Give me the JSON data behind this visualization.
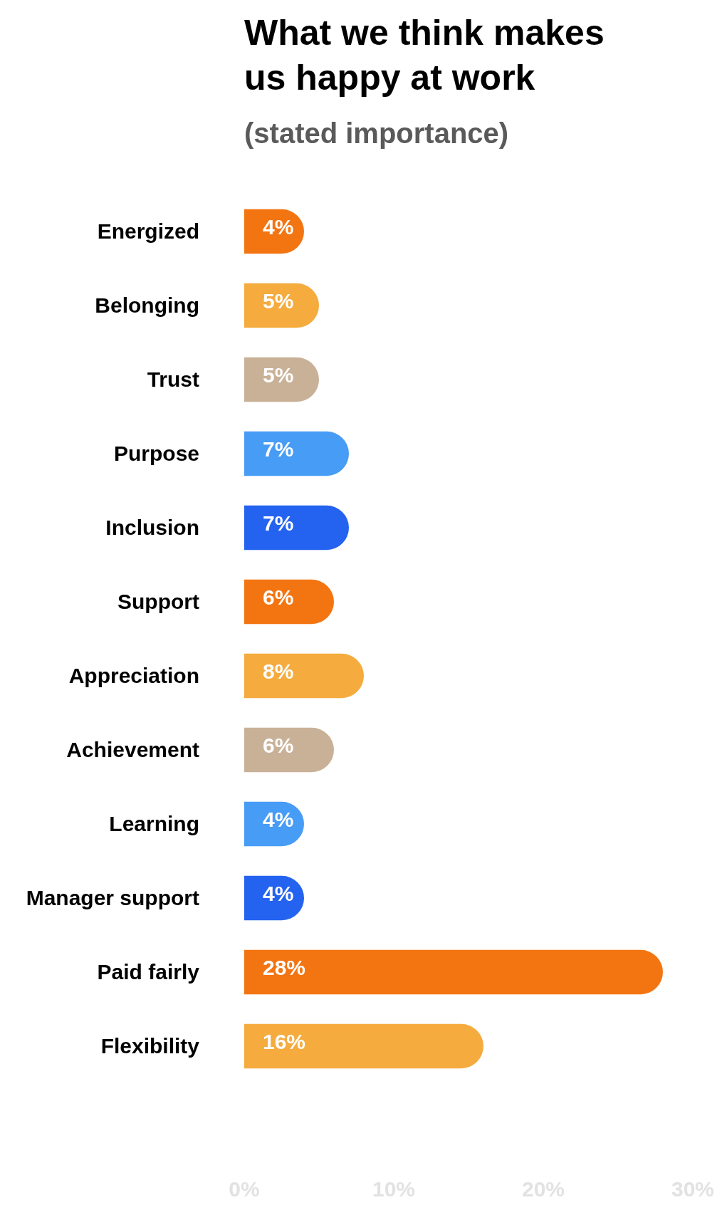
{
  "chart_data": {
    "type": "bar",
    "orientation": "horizontal",
    "title": "What we think makes us happy at work",
    "subtitle": "(stated importance)",
    "categories": [
      "Energized",
      "Belonging",
      "Trust",
      "Purpose",
      "Inclusion",
      "Support",
      "Appreciation",
      "Achievement",
      "Learning",
      "Manager support",
      "Paid fairly",
      "Flexibility"
    ],
    "values": [
      4,
      5,
      5,
      7,
      7,
      6,
      8,
      6,
      4,
      4,
      28,
      16
    ],
    "colors": [
      "#f37512",
      "#f5ab3e",
      "#c9b198",
      "#479cf5",
      "#2463f0",
      "#f37512",
      "#f5ab3e",
      "#c9b198",
      "#479cf5",
      "#2463f0",
      "#f37512",
      "#f5ab3e"
    ],
    "value_labels": [
      "4%",
      "5%",
      "5%",
      "7%",
      "7%",
      "6%",
      "8%",
      "6%",
      "4%",
      "4%",
      "28%",
      "16%"
    ],
    "xlim": [
      0,
      30
    ],
    "xticks": [
      {
        "value": 0,
        "label": "0%"
      },
      {
        "value": 10,
        "label": "10%"
      },
      {
        "value": 20,
        "label": "20%"
      },
      {
        "value": 30,
        "label": "30%"
      }
    ],
    "grid": false
  }
}
